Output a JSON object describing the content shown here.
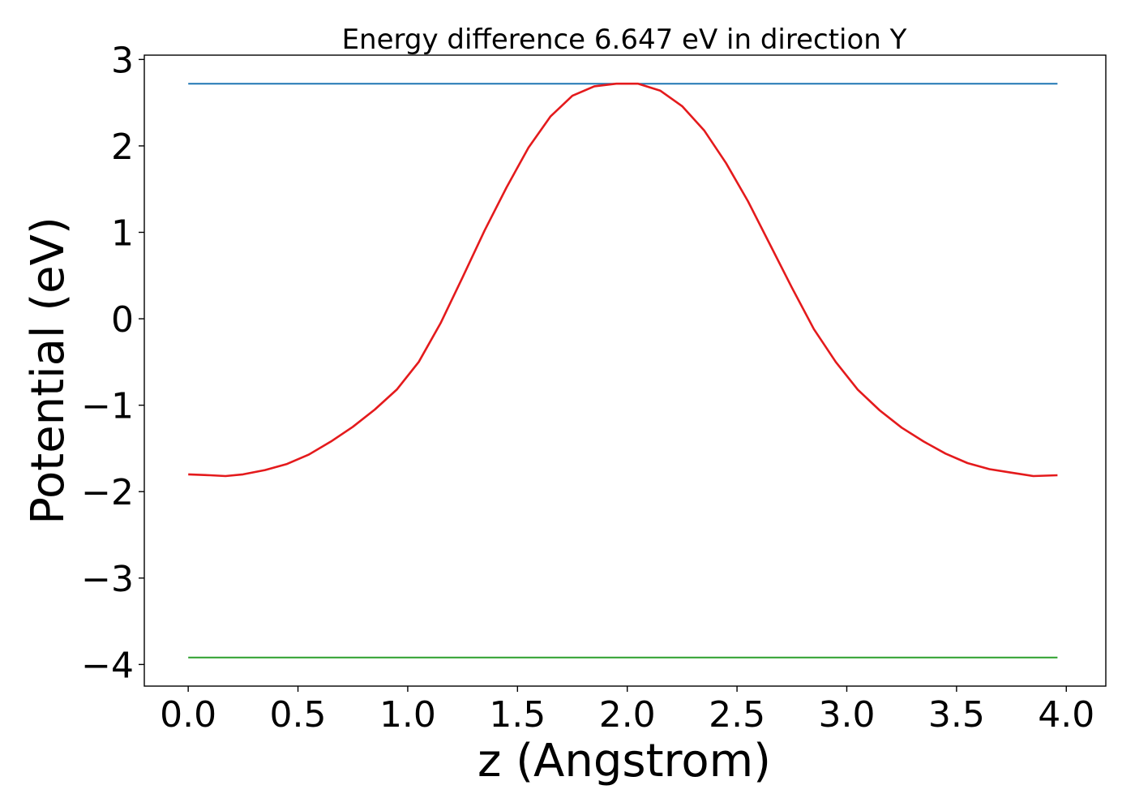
{
  "chart_data": {
    "type": "line",
    "title": "Energy difference 6.647 eV in direction Y",
    "xlabel": "z (Angstrom)",
    "ylabel": "Potential (eV)",
    "xlim": [
      -0.2,
      4.18
    ],
    "ylim": [
      -4.25,
      3.05
    ],
    "x_ticks": [
      0.0,
      0.5,
      1.0,
      1.5,
      2.0,
      2.5,
      3.0,
      3.5,
      4.0
    ],
    "x_tick_labels": [
      "0.0",
      "0.5",
      "1.0",
      "1.5",
      "2.0",
      "2.5",
      "3.0",
      "3.5",
      "4.0"
    ],
    "y_ticks": [
      3,
      2,
      1,
      0,
      -1,
      -2,
      -3,
      -4
    ],
    "y_tick_labels": [
      "3",
      "2",
      "1",
      "0",
      "−1",
      "−2",
      "−3",
      "−4"
    ],
    "grid": false,
    "series": [
      {
        "color": "#1f77b4",
        "x": [
          0.0,
          3.96
        ],
        "y": [
          2.72,
          2.72
        ]
      },
      {
        "color": "#2ca02c",
        "x": [
          0.0,
          3.96
        ],
        "y": [
          -3.92,
          -3.92
        ]
      },
      {
        "color": "#e41a1c",
        "x": [
          0.0,
          0.1,
          0.17,
          0.25,
          0.35,
          0.45,
          0.55,
          0.65,
          0.75,
          0.85,
          0.95,
          1.05,
          1.15,
          1.25,
          1.35,
          1.45,
          1.55,
          1.65,
          1.75,
          1.85,
          1.95,
          2.0,
          2.05,
          2.15,
          2.25,
          2.35,
          2.45,
          2.55,
          2.65,
          2.75,
          2.85,
          2.95,
          3.05,
          3.15,
          3.25,
          3.35,
          3.45,
          3.55,
          3.65,
          3.75,
          3.85,
          3.96
        ],
        "y": [
          -1.8,
          -1.81,
          -1.82,
          -1.8,
          -1.75,
          -1.68,
          -1.57,
          -1.42,
          -1.25,
          -1.05,
          -0.82,
          -0.5,
          -0.05,
          0.48,
          1.02,
          1.52,
          1.98,
          2.34,
          2.58,
          2.69,
          2.72,
          2.72,
          2.72,
          2.64,
          2.46,
          2.18,
          1.8,
          1.36,
          0.86,
          0.36,
          -0.12,
          -0.5,
          -0.82,
          -1.06,
          -1.26,
          -1.42,
          -1.56,
          -1.67,
          -1.74,
          -1.78,
          -1.82,
          -1.81
        ]
      }
    ]
  }
}
